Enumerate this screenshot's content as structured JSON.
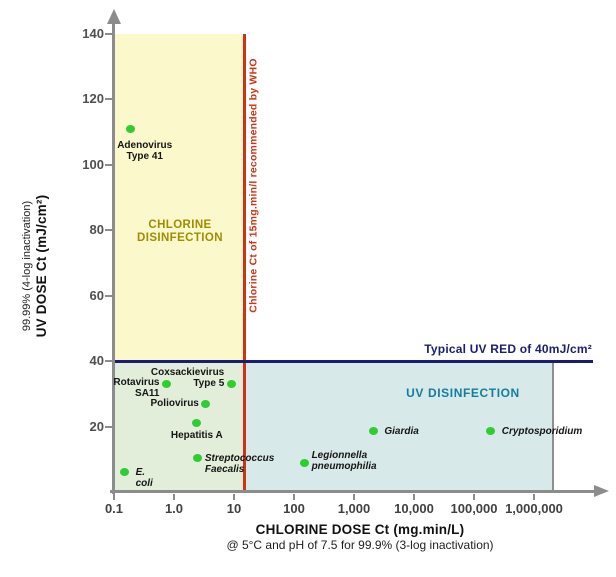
{
  "colors": {
    "chlorine_region_fill": "#fbf8cc",
    "overlap_region_fill": "#e2eeda",
    "uv_region_fill": "#d8e9e9",
    "who_line_red": "#cf3315",
    "uv_red_navy": "#1c1c73",
    "uv_title_teal": "#127d9d",
    "chlorine_title_gold": "#a08e00",
    "point_green": "#2fcd32",
    "axis_gray": "#8c8c8c",
    "boundary_gray": "#8f8f8f"
  },
  "chart_data": {
    "type": "scatter",
    "x_scale": "log",
    "grid": false,
    "legend": "none",
    "xlim": [
      0.1,
      1000000
    ],
    "ylim": [
      0,
      140
    ],
    "x_axis": {
      "title": "CHLORINE DOSE Ct (mg.min/L)",
      "note": "@ 5°C and pH of 7.5 for 99.9% (3-log inactivation)",
      "ticks": [
        {
          "value": 0.1,
          "label": "0.1"
        },
        {
          "value": 1,
          "label": "1.0"
        },
        {
          "value": 10,
          "label": "10"
        },
        {
          "value": 100,
          "label": "100"
        },
        {
          "value": 1000,
          "label": "1,000"
        },
        {
          "value": 10000,
          "label": "10,000"
        },
        {
          "value": 100000,
          "label": "100,000"
        },
        {
          "value": 1000000,
          "label": "1,000,000"
        }
      ]
    },
    "y_axis": {
      "note": "99.99% (4-log inactivation)",
      "title": "UV DOSE Ct (mJ/cm²)",
      "ticks": [
        20,
        40,
        60,
        80,
        100,
        120,
        140
      ]
    },
    "reference_lines": {
      "vertical": {
        "value": 15,
        "label": "Chlorine Ct of 15mg.min/l recommended by WHO"
      },
      "horizontal": {
        "value": 40,
        "label": "Typical UV RED of 40mJ/cm²"
      },
      "uv_region_right_boundary": {
        "value": 2000000
      }
    },
    "regions": [
      {
        "id": "chlorine-disinfection",
        "label": "CHLORINE\nDISINFECTION",
        "x_range": [
          0.1,
          15
        ],
        "y_range": [
          40,
          140
        ]
      },
      {
        "id": "overlap",
        "label": "",
        "x_range": [
          0.1,
          15
        ],
        "y_range": [
          0,
          40
        ]
      },
      {
        "id": "uv-disinfection",
        "label": "UV DISINFECTION",
        "x_range": [
          15,
          2000000
        ],
        "y_range": [
          0,
          40
        ]
      }
    ],
    "points": [
      {
        "name": "Adenovirus Type 41",
        "x": 0.19,
        "y": 111,
        "label": "Adenovirus\nType 41",
        "italic": false,
        "side": "below",
        "dx": 14,
        "dy": 6
      },
      {
        "name": "Rotavirus SA11",
        "x": 0.75,
        "y": 33,
        "label": "Rotavirus\nSA11",
        "italic": false,
        "side": "left",
        "dy": 4
      },
      {
        "name": "Coxsackievirus Type 5",
        "x": 9,
        "y": 33,
        "label": "Coxsackievirus\nType 5",
        "italic": false,
        "side": "left",
        "dy": -6
      },
      {
        "name": "Poliovirus",
        "x": 3.4,
        "y": 27,
        "label": "Poliovirus",
        "italic": false,
        "side": "left"
      },
      {
        "name": "Hepatitis A",
        "x": 2.4,
        "y": 21,
        "label": "Hepatitis A",
        "italic": false,
        "side": "below",
        "dy": 2
      },
      {
        "name": "Streptococcus Faecalis",
        "x": 2.5,
        "y": 10.5,
        "label": "Streptococcus\nFaecalis",
        "italic": true,
        "side": "right",
        "dy": 6
      },
      {
        "name": "E. coli",
        "x": 0.15,
        "y": 6,
        "label": "E. coli",
        "italic": true,
        "side": "right",
        "dx": 4
      },
      {
        "name": "Legionnella pneumophilia",
        "x": 150,
        "y": 9,
        "label": "Legionnella\npneumophilia",
        "italic": true,
        "side": "right",
        "dy": -2
      },
      {
        "name": "Giardia",
        "x": 2100,
        "y": 18.5,
        "label": "Giardia",
        "italic": true,
        "side": "right",
        "dx": 4
      },
      {
        "name": "Cryptosporidium",
        "x": 190000,
        "y": 18.5,
        "label": "Cryptosporidium",
        "italic": true,
        "side": "right",
        "dx": 4
      }
    ]
  }
}
